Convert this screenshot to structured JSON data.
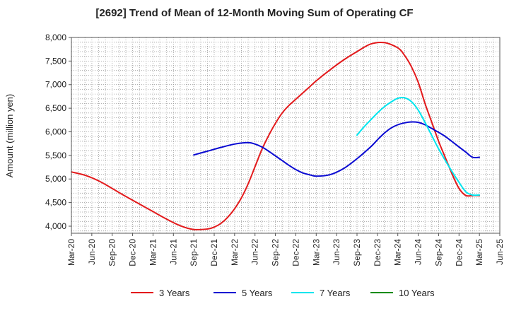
{
  "chart_data": {
    "type": "line",
    "title": "[2692]  Trend of Mean of 12-Month Moving Sum of Operating CF",
    "xlabel": "",
    "ylabel": "Amount (million yen)",
    "ylim": [
      3850,
      8000
    ],
    "yticks": [
      4000,
      4500,
      5000,
      5500,
      6000,
      6500,
      7000,
      7500,
      8000
    ],
    "ytick_labels": [
      "4,000",
      "4,500",
      "5,000",
      "5,500",
      "6,000",
      "6,500",
      "7,000",
      "7,500",
      "8,000"
    ],
    "x_range_months": [
      0,
      63
    ],
    "xtick_labels": [
      "Mar-20",
      "Jun-20",
      "Sep-20",
      "Dec-20",
      "Mar-21",
      "Jun-21",
      "Sep-21",
      "Dec-21",
      "Mar-22",
      "Jun-22",
      "Sep-22",
      "Dec-22",
      "Mar-23",
      "Jun-23",
      "Sep-23",
      "Dec-23",
      "Mar-24",
      "Jun-24",
      "Sep-24",
      "Dec-24",
      "Mar-25",
      "Jun-25"
    ],
    "grid": true,
    "legend_position": "bottom",
    "series": [
      {
        "name": "3 Years",
        "color": "#e31a1c",
        "x": [
          0,
          2,
          4,
          6,
          8,
          10,
          12,
          14,
          16,
          18,
          20,
          21,
          22,
          23,
          24,
          25,
          26,
          27,
          28,
          29,
          30,
          31,
          32,
          33,
          34,
          35,
          36,
          38,
          40,
          42,
          44,
          46,
          48,
          49,
          50,
          51,
          52,
          53,
          54,
          55,
          56,
          57,
          58,
          59,
          60
        ],
        "values": [
          5150,
          5080,
          4960,
          4800,
          4630,
          4470,
          4310,
          4150,
          4010,
          3930,
          3940,
          3980,
          4060,
          4190,
          4370,
          4600,
          4900,
          5260,
          5620,
          5920,
          6180,
          6400,
          6560,
          6690,
          6820,
          6950,
          7080,
          7310,
          7520,
          7700,
          7860,
          7890,
          7780,
          7620,
          7380,
          7050,
          6600,
          6200,
          5800,
          5450,
          5100,
          4800,
          4650,
          4650,
          4650
        ],
        "x_max_plot": 60
      },
      {
        "name": "5 Years",
        "color": "#0a0ad2",
        "x": [
          18,
          20,
          22,
          24,
          26,
          27,
          28,
          29,
          30,
          31,
          32,
          33,
          34,
          35,
          36,
          38,
          40,
          42,
          44,
          45,
          46,
          47,
          48,
          49,
          50,
          51,
          52,
          53,
          54,
          55,
          56,
          57,
          58,
          59,
          60
        ],
        "values": [
          5510,
          5590,
          5670,
          5740,
          5770,
          5740,
          5680,
          5590,
          5490,
          5390,
          5290,
          5200,
          5130,
          5090,
          5060,
          5090,
          5220,
          5430,
          5680,
          5830,
          5970,
          6080,
          6150,
          6190,
          6210,
          6200,
          6150,
          6070,
          5990,
          5900,
          5790,
          5680,
          5570,
          5460,
          5460
        ],
        "x_min_plot": 18,
        "x_max_plot": 60
      },
      {
        "name": "7 Years",
        "color": "#00e5ee",
        "x": [
          42,
          43,
          44,
          45,
          46,
          47,
          48,
          49,
          50,
          51,
          52,
          53,
          54,
          55,
          56,
          57,
          58,
          59,
          60
        ],
        "values": [
          5930,
          6100,
          6250,
          6400,
          6530,
          6630,
          6710,
          6720,
          6640,
          6460,
          6200,
          5920,
          5640,
          5390,
          5150,
          4930,
          4730,
          4660,
          4660
        ],
        "x_min_plot": 42,
        "x_max_plot": 60
      },
      {
        "name": "10 Years",
        "color": "#1a8c1a",
        "x": [],
        "values": []
      }
    ]
  }
}
